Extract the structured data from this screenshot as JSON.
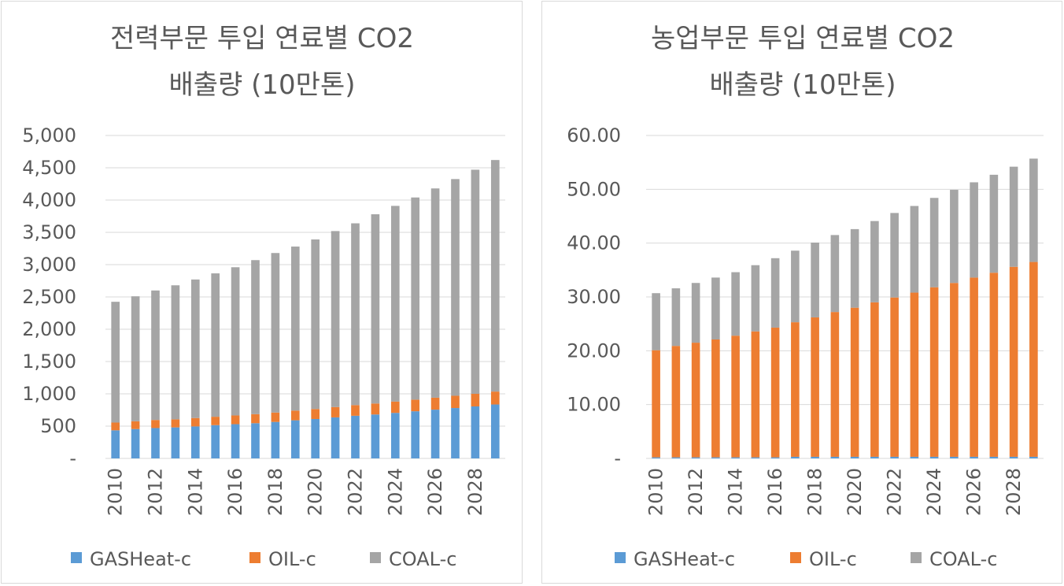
{
  "chart_data": [
    {
      "type": "bar",
      "stacked": true,
      "title_line1": "전력부문 투입 연료별 CO2",
      "title_line2": "배출량 (10만톤)",
      "xlabel": "",
      "ylabel": "",
      "ylim": [
        0,
        5000
      ],
      "yticks": [
        "-",
        "500",
        "1,000",
        "1,500",
        "2,000",
        "2,500",
        "3,000",
        "3,500",
        "4,000",
        "4,500",
        "5,000"
      ],
      "ytick_values": [
        0,
        500,
        1000,
        1500,
        2000,
        2500,
        3000,
        3500,
        4000,
        4500,
        5000
      ],
      "categories": [
        "2010",
        "2011",
        "2012",
        "2013",
        "2014",
        "2015",
        "2016",
        "2017",
        "2018",
        "2019",
        "2020",
        "2021",
        "2022",
        "2023",
        "2024",
        "2025",
        "2026",
        "2027",
        "2028",
        "2029"
      ],
      "xtick_labels": [
        "2010",
        "",
        "2012",
        "",
        "2014",
        "",
        "2016",
        "",
        "2018",
        "",
        "2020",
        "",
        "2022",
        "",
        "2024",
        "",
        "2026",
        "",
        "2028",
        ""
      ],
      "grid": true,
      "legend_position": "bottom",
      "series": [
        {
          "name": "GASHeat-c",
          "color": "#5b9bd5",
          "values": [
            435,
            455,
            470,
            480,
            495,
            515,
            530,
            545,
            565,
            590,
            610,
            635,
            660,
            680,
            705,
            730,
            755,
            780,
            805,
            835
          ]
        },
        {
          "name": "OIL-c",
          "color": "#ed7d31",
          "values": [
            120,
            120,
            125,
            125,
            130,
            130,
            135,
            140,
            145,
            150,
            155,
            160,
            165,
            170,
            175,
            180,
            185,
            190,
            195,
            200
          ]
        },
        {
          "name": "COAL-c",
          "color": "#a5a5a5",
          "values": [
            1870,
            1935,
            2005,
            2075,
            2145,
            2220,
            2295,
            2385,
            2470,
            2540,
            2625,
            2725,
            2815,
            2930,
            3030,
            3130,
            3240,
            3355,
            3470,
            3585
          ]
        }
      ]
    },
    {
      "type": "bar",
      "stacked": true,
      "title_line1": "농업부문 투입 연료별 CO2",
      "title_line2": "배출량 (10만톤)",
      "xlabel": "",
      "ylabel": "",
      "ylim": [
        0,
        60
      ],
      "yticks": [
        "-",
        "10.00",
        "20.00",
        "30.00",
        "40.00",
        "50.00",
        "60.00"
      ],
      "ytick_values": [
        0,
        10,
        20,
        30,
        40,
        50,
        60
      ],
      "categories": [
        "2010",
        "2011",
        "2012",
        "2013",
        "2014",
        "2015",
        "2016",
        "2017",
        "2018",
        "2019",
        "2020",
        "2021",
        "2022",
        "2023",
        "2024",
        "2025",
        "2026",
        "2027",
        "2028",
        "2029"
      ],
      "xtick_labels": [
        "2010",
        "",
        "2012",
        "",
        "2014",
        "",
        "2016",
        "",
        "2018",
        "",
        "2020",
        "",
        "2022",
        "",
        "2024",
        "",
        "2026",
        "",
        "2028",
        ""
      ],
      "grid": true,
      "legend_position": "bottom",
      "series": [
        {
          "name": "GASHeat-c",
          "color": "#5b9bd5",
          "values": [
            0.2,
            0.2,
            0.2,
            0.2,
            0.2,
            0.2,
            0.2,
            0.3,
            0.3,
            0.3,
            0.3,
            0.3,
            0.3,
            0.3,
            0.3,
            0.3,
            0.3,
            0.3,
            0.3,
            0.3
          ]
        },
        {
          "name": "OIL-c",
          "color": "#ed7d31",
          "values": [
            19.9,
            20.7,
            21.3,
            21.9,
            22.6,
            23.4,
            24.1,
            25.0,
            25.9,
            26.9,
            27.7,
            28.7,
            29.6,
            30.5,
            31.5,
            32.3,
            33.3,
            34.2,
            35.3,
            36.2
          ]
        },
        {
          "name": "COAL-c",
          "color": "#a5a5a5",
          "values": [
            10.6,
            10.7,
            11.1,
            11.5,
            11.8,
            12.3,
            12.9,
            13.3,
            13.9,
            14.3,
            14.6,
            15.1,
            15.7,
            16.1,
            16.6,
            17.3,
            17.7,
            18.2,
            18.6,
            19.2
          ]
        }
      ]
    }
  ]
}
